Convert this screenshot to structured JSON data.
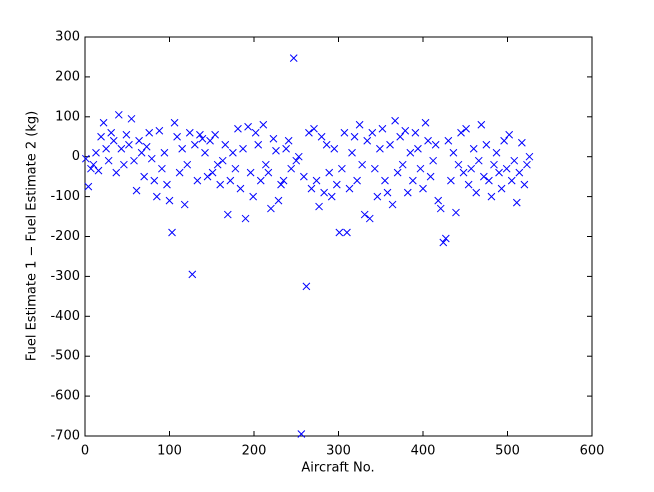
{
  "chart_data": {
    "type": "scatter",
    "xlabel": "Aircraft No.",
    "ylabel": "Fuel Estimate 1 − Fuel Estimate 2 (kg)",
    "x": [
      1,
      4,
      7,
      10,
      13,
      16,
      19,
      22,
      25,
      28,
      31,
      34,
      37,
      40,
      43,
      46,
      49,
      52,
      55,
      58,
      61,
      64,
      67,
      70,
      73,
      76,
      79,
      82,
      85,
      88,
      91,
      94,
      97,
      100,
      103,
      106,
      109,
      112,
      115,
      118,
      121,
      124,
      127,
      130,
      133,
      136,
      139,
      142,
      145,
      148,
      151,
      154,
      157,
      160,
      163,
      166,
      169,
      172,
      175,
      178,
      181,
      184,
      187,
      190,
      193,
      196,
      199,
      202,
      205,
      208,
      211,
      214,
      217,
      220,
      223,
      226,
      229,
      232,
      235,
      238,
      241,
      244,
      247,
      250,
      253,
      256,
      259,
      262,
      265,
      268,
      271,
      274,
      277,
      280,
      283,
      286,
      289,
      292,
      295,
      298,
      301,
      304,
      307,
      310,
      313,
      316,
      319,
      322,
      325,
      328,
      331,
      334,
      337,
      340,
      343,
      346,
      349,
      352,
      355,
      358,
      361,
      364,
      367,
      370,
      373,
      376,
      379,
      382,
      385,
      388,
      391,
      394,
      397,
      400,
      403,
      406,
      409,
      412,
      415,
      418,
      421,
      424,
      427,
      430,
      433,
      436,
      439,
      442,
      445,
      448,
      451,
      454,
      457,
      460,
      463,
      466,
      469,
      472,
      475,
      478,
      481,
      484,
      487,
      490,
      493,
      496,
      499,
      502,
      505,
      508,
      511,
      514,
      517,
      520,
      523,
      526
    ],
    "series": [
      {
        "color": "#0000ff",
        "marker": "x",
        "values": [
          -5,
          -75,
          -30,
          -20,
          10,
          -35,
          50,
          85,
          20,
          -10,
          60,
          40,
          -40,
          105,
          20,
          -20,
          55,
          30,
          95,
          -10,
          -85,
          40,
          10,
          -50,
          25,
          60,
          -5,
          -60,
          -100,
          65,
          -30,
          10,
          -70,
          -110,
          -190,
          85,
          50,
          -40,
          20,
          -120,
          -20,
          60,
          -295,
          30,
          -60,
          55,
          45,
          10,
          -50,
          40,
          -40,
          55,
          -20,
          -70,
          -10,
          30,
          -145,
          -60,
          10,
          -30,
          70,
          -80,
          20,
          -155,
          75,
          -40,
          -100,
          60,
          30,
          -60,
          80,
          -20,
          -40,
          -130,
          45,
          15,
          -110,
          -70,
          -60,
          20,
          40,
          -30,
          247,
          -10,
          0,
          -695,
          -50,
          -325,
          60,
          -80,
          70,
          -60,
          -125,
          50,
          -90,
          30,
          -40,
          -100,
          20,
          -70,
          -190,
          -30,
          60,
          -190,
          -80,
          10,
          50,
          -60,
          80,
          -20,
          -145,
          40,
          -155,
          60,
          -30,
          -100,
          20,
          70,
          -60,
          -90,
          30,
          -120,
          90,
          -40,
          50,
          -20,
          65,
          -90,
          10,
          -60,
          60,
          20,
          -30,
          -80,
          85,
          40,
          -50,
          -10,
          30,
          -110,
          -130,
          -215,
          -205,
          40,
          -60,
          10,
          -140,
          -20,
          60,
          -40,
          70,
          -70,
          -30,
          20,
          -90,
          -10,
          80,
          -50,
          30,
          -60,
          -100,
          -20,
          10,
          -40,
          -80,
          40,
          -30,
          55,
          -60,
          -10,
          -115,
          -40,
          35,
          -70,
          -20,
          0
        ]
      }
    ],
    "xlim": [
      0,
      600
    ],
    "xticks": [
      0,
      100,
      200,
      300,
      400,
      500,
      600
    ],
    "ylim": [
      -700,
      300
    ],
    "yticks": [
      -700,
      -600,
      -500,
      -400,
      -300,
      -200,
      -100,
      0,
      100,
      200,
      300
    ],
    "grid": false
  }
}
